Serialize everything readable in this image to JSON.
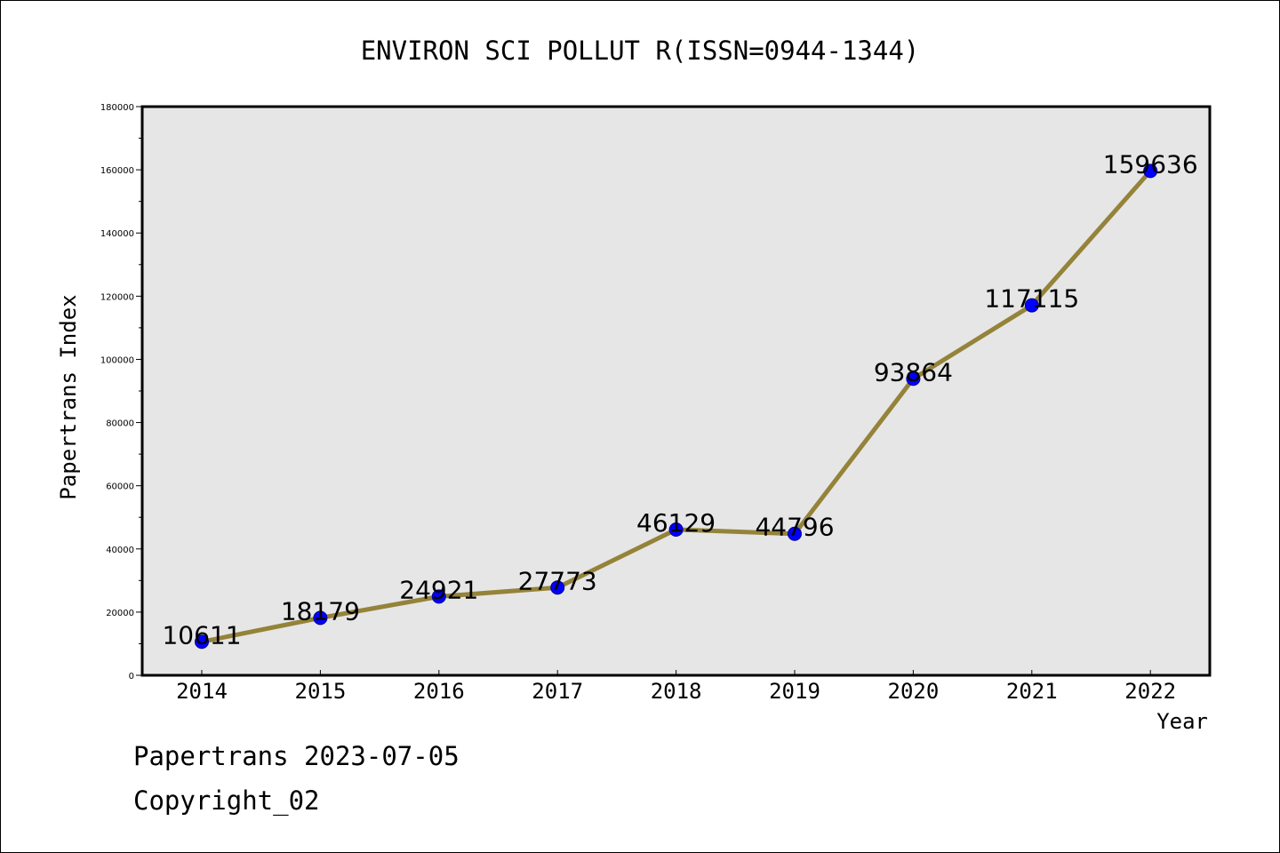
{
  "chart_data": {
    "type": "line",
    "title": "ENVIRON SCI POLLUT R(ISSN=0944-1344)",
    "xlabel": "Year",
    "ylabel": "Papertrans Index",
    "categories": [
      "2014",
      "2015",
      "2016",
      "2017",
      "2018",
      "2019",
      "2020",
      "2021",
      "2022"
    ],
    "series": [
      {
        "values": [
          10611,
          18179,
          24921,
          27773,
          46129,
          44796,
          93864,
          117115,
          159636
        ],
        "data_labels": [
          "10611",
          "18179",
          "24921",
          "27773",
          "46129",
          "44796",
          "93864",
          "117115",
          "159636"
        ]
      }
    ],
    "ylim": [
      0,
      180000
    ],
    "yticks": [
      "0",
      "20000",
      "40000",
      "60000",
      "80000",
      "100000",
      "120000",
      "140000",
      "160000",
      "180000"
    ],
    "grid": false,
    "legend": "none",
    "colors": {
      "line": "#948339",
      "marker_fill": "#0000ff",
      "marker_edge": "#00008b",
      "plot_background": "#e6e6e6"
    }
  },
  "footer": {
    "stamp": "Papertrans 2023-07-05",
    "copyright": "Copyright_02"
  }
}
